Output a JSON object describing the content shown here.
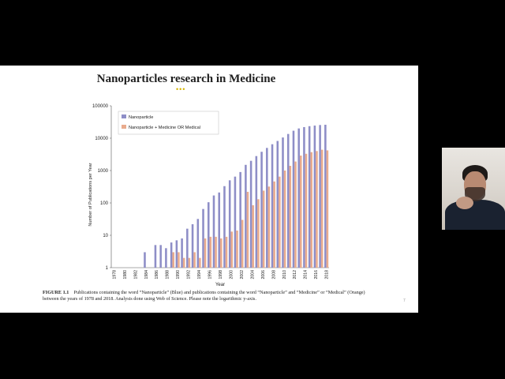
{
  "slide": {
    "title": "Nanoparticles research in Medicine",
    "dots": "•••",
    "caption_label": "FIGURE 1.1",
    "caption_text": "Publications containing the word “Nanoparticle” (Blue) and publications containing the word “Nanoparticle” and “Medicine” or “Medical” (Orange) between the years of 1978 and 2018. Analysis done using Web of Science. Please note the logarithmic y-axis.",
    "page_number": "7"
  },
  "colors": {
    "nanoparticle": "#8e8ec7",
    "medicine": "#e9ab8d",
    "accent_dots": "#d4b400"
  },
  "chart_data": {
    "type": "bar",
    "title": "",
    "xlabel": "Year",
    "ylabel": "Number of Publications per Year",
    "yscale": "log",
    "ylim": [
      1,
      100000
    ],
    "yticks": [
      "1",
      "10",
      "100",
      "1000",
      "10000",
      "100000"
    ],
    "xticks": [
      "1978",
      "1980",
      "1982",
      "1984",
      "1986",
      "1988",
      "1990",
      "1992",
      "1994",
      "1996",
      "1998",
      "2000",
      "2002",
      "2004",
      "2006",
      "2008",
      "2010",
      "2012",
      "2014",
      "2016",
      "2018"
    ],
    "categories": [
      "1978",
      "1979",
      "1980",
      "1981",
      "1982",
      "1983",
      "1984",
      "1985",
      "1986",
      "1987",
      "1988",
      "1989",
      "1990",
      "1991",
      "1992",
      "1993",
      "1994",
      "1995",
      "1996",
      "1997",
      "1998",
      "1999",
      "2000",
      "2001",
      "2002",
      "2003",
      "2004",
      "2005",
      "2006",
      "2007",
      "2008",
      "2009",
      "2010",
      "2011",
      "2012",
      "2013",
      "2014",
      "2015",
      "2016",
      "2017",
      "2018"
    ],
    "legend_position": "top-left",
    "grid": false,
    "series": [
      {
        "name": "Nanoparticle",
        "color": "#8e8ec7",
        "values": [
          1,
          1,
          1,
          1,
          1,
          1,
          3,
          1,
          5,
          5,
          4,
          6,
          7,
          8,
          16,
          22,
          32,
          65,
          105,
          170,
          210,
          330,
          500,
          650,
          900,
          1500,
          2000,
          2800,
          3800,
          5000,
          6500,
          8200,
          10500,
          13500,
          17000,
          20000,
          22000,
          23500,
          24500,
          25500,
          26000
        ]
      },
      {
        "name": "Nanoparticle + Medicine OR Medical",
        "color": "#e9ab8d",
        "values": [
          1,
          1,
          1,
          1,
          1,
          1,
          1,
          1,
          1,
          1,
          1,
          3,
          3,
          2,
          2,
          3,
          2,
          8,
          9,
          9,
          8,
          9,
          13,
          14,
          30,
          220,
          85,
          130,
          240,
          320,
          460,
          650,
          1000,
          1400,
          1900,
          2900,
          3300,
          3700,
          4000,
          4400,
          4200
        ]
      }
    ]
  }
}
